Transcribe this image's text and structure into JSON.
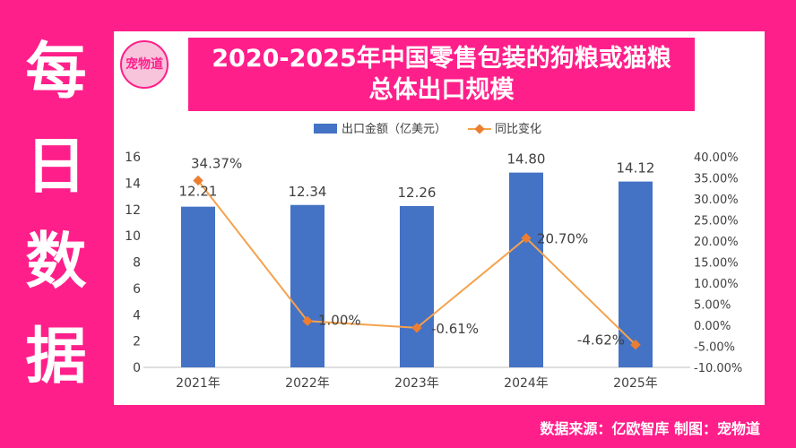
{
  "side_title": [
    "每",
    "日",
    "数",
    "据"
  ],
  "logo_text": "宠物道",
  "colors": {
    "bar": "#4472c4",
    "line": "#f4a24d",
    "marker": "#ed7d31",
    "brand": "#ff1f8a"
  },
  "footer": "数据来源：亿欧智库 制图：宠物道",
  "chart_data": {
    "type": "bar+line",
    "title": [
      "2020-2025年中国零售包装的狗粮或猫粮",
      "总体出口规模"
    ],
    "categories": [
      "2021年",
      "2022年",
      "2023年",
      "2024年",
      "2025年"
    ],
    "series": [
      {
        "name": "出口金额（亿美元）",
        "type": "bar",
        "axis": "left",
        "values": [
          12.21,
          12.34,
          12.26,
          14.8,
          14.12
        ],
        "labels": [
          "12.21",
          "12.34",
          "12.26",
          "14.80",
          "14.12"
        ]
      },
      {
        "name": "同比变化",
        "type": "line",
        "axis": "right",
        "values": [
          34.37,
          1.0,
          -0.61,
          20.7,
          -4.62
        ],
        "labels": [
          "34.37%",
          "1.00%",
          "-0.61%",
          "20.70%",
          "-4.62%"
        ]
      }
    ],
    "y_left": {
      "min": 0,
      "max": 16,
      "ticks": [
        "0",
        "2",
        "4",
        "6",
        "8",
        "10",
        "12",
        "14",
        "16"
      ]
    },
    "y_right": {
      "min": -10,
      "max": 40,
      "ticks": [
        "-10.00%",
        "-5.00%",
        "0.00%",
        "5.00%",
        "10.00%",
        "15.00%",
        "20.00%",
        "25.00%",
        "30.00%",
        "35.00%",
        "40.00%"
      ]
    },
    "legend_position": "top",
    "grid": false
  }
}
